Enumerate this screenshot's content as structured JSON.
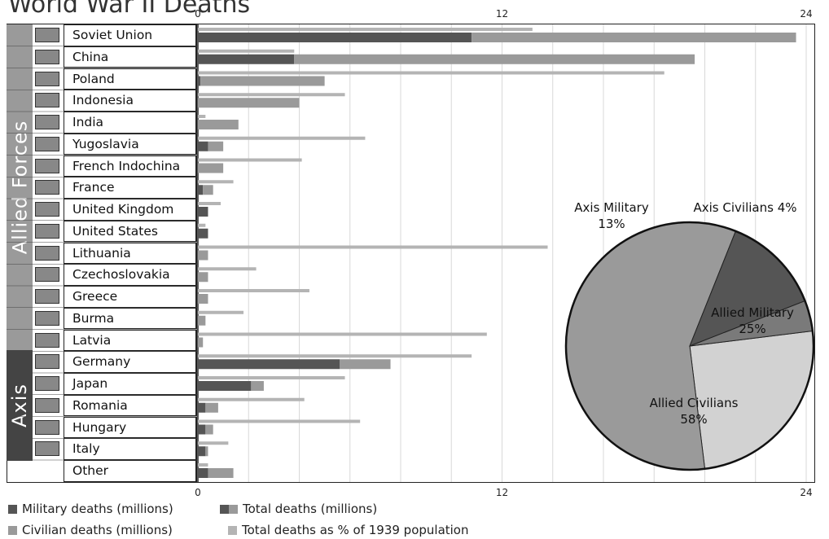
{
  "chart_data": [
    {
      "type": "bar",
      "title": "World War II Deaths",
      "groups": [
        {
          "name": "Allied Forces",
          "countries": [
            "Soviet Union",
            "China",
            "Poland",
            "Indonesia",
            "India",
            "Yugoslavia",
            "French Indochina",
            "France",
            "United Kingdom",
            "United States",
            "Lithuania",
            "Czechoslovakia",
            "Greece",
            "Burma",
            "Latvia"
          ]
        },
        {
          "name": "Axis",
          "countries": [
            "Germany",
            "Japan",
            "Romania",
            "Hungary",
            "Italy"
          ]
        }
      ],
      "categories": [
        "Soviet Union",
        "China",
        "Poland",
        "Indonesia",
        "India",
        "Yugoslavia",
        "French Indochina",
        "France",
        "United Kingdom",
        "United States",
        "Lithuania",
        "Czechoslovakia",
        "Greece",
        "Burma",
        "Latvia",
        "Germany",
        "Japan",
        "Romania",
        "Hungary",
        "Italy",
        "Other"
      ],
      "series": [
        {
          "name": "Military deaths (millions)",
          "values": [
            10.8,
            3.8,
            0.1,
            0.0,
            0.0,
            0.4,
            0.0,
            0.2,
            0.4,
            0.4,
            0.0,
            0.0,
            0.0,
            0.0,
            0.0,
            5.6,
            2.1,
            0.3,
            0.3,
            0.3,
            0.4
          ]
        },
        {
          "name": "Civilian deaths (millions)",
          "values": [
            12.8,
            15.8,
            4.9,
            4.0,
            1.6,
            0.6,
            1.0,
            0.4,
            0.0,
            0.0,
            0.4,
            0.4,
            0.4,
            0.3,
            0.2,
            2.0,
            0.5,
            0.5,
            0.3,
            0.1,
            1.0
          ]
        },
        {
          "name": "Total deaths as % of 1939 population",
          "values": [
            13.2,
            3.8,
            18.4,
            5.8,
            0.3,
            6.6,
            4.1,
            1.4,
            0.9,
            0.3,
            13.8,
            2.3,
            4.4,
            1.8,
            11.4,
            10.8,
            5.8,
            4.2,
            6.4,
            1.2,
            0.4
          ]
        }
      ],
      "legend": [
        "Military deaths (millions)",
        "Total deaths (millions)",
        "Civilian deaths (millions)",
        "Total deaths as % of 1939 population"
      ],
      "x_ticks": [
        "0",
        "12",
        "24"
      ],
      "xlim": [
        0,
        24
      ],
      "legend_position": "bottom-left",
      "grid": true,
      "colors": {
        "military": "#555555",
        "civilian": "#9a9a9a",
        "percent": "#b4b4b4",
        "allied_band": "#9a9a9a",
        "axis_band": "#444444"
      }
    },
    {
      "type": "pie",
      "slices": [
        {
          "label": "Allied Military",
          "pct_label": "25%",
          "value": 25,
          "color": "#d2d2d2"
        },
        {
          "label": "Allied Civilians",
          "pct_label": "58%",
          "value": 58,
          "color": "#9a9a9a"
        },
        {
          "label": "Axis Military",
          "pct_label": "13%",
          "value": 13,
          "color": "#555555"
        },
        {
          "label": "Axis Civilians 4%",
          "pct_label": "",
          "value": 4,
          "color": "#7a7a7a"
        }
      ]
    }
  ]
}
